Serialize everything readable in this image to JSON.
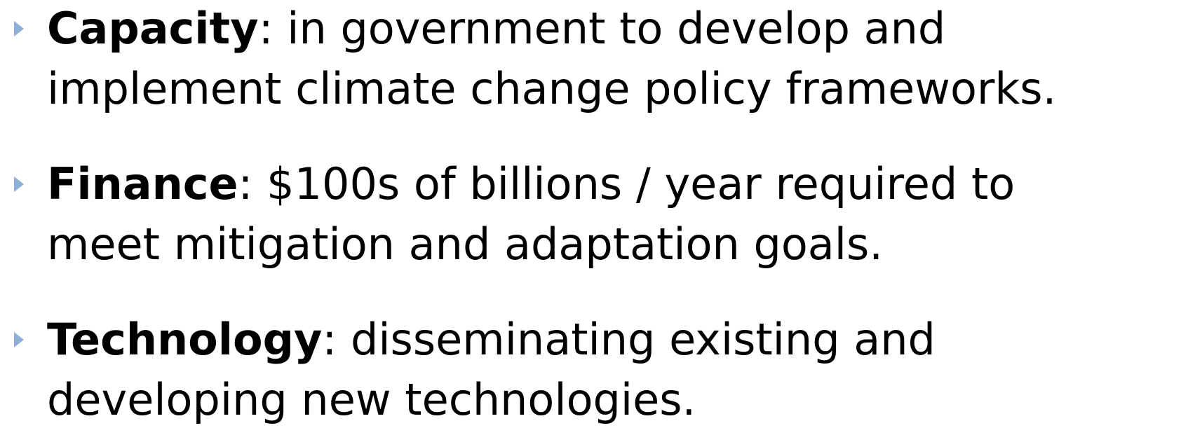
{
  "bullets": [
    {
      "term": "Capacity",
      "text": ": in government to develop and implement climate change policy frameworks."
    },
    {
      "term": "Finance",
      "text": ": $100s of billions / year required to meet mitigation and adaptation goals."
    },
    {
      "term": "Technology",
      "text": ": disseminating existing and developing new technologies."
    }
  ]
}
